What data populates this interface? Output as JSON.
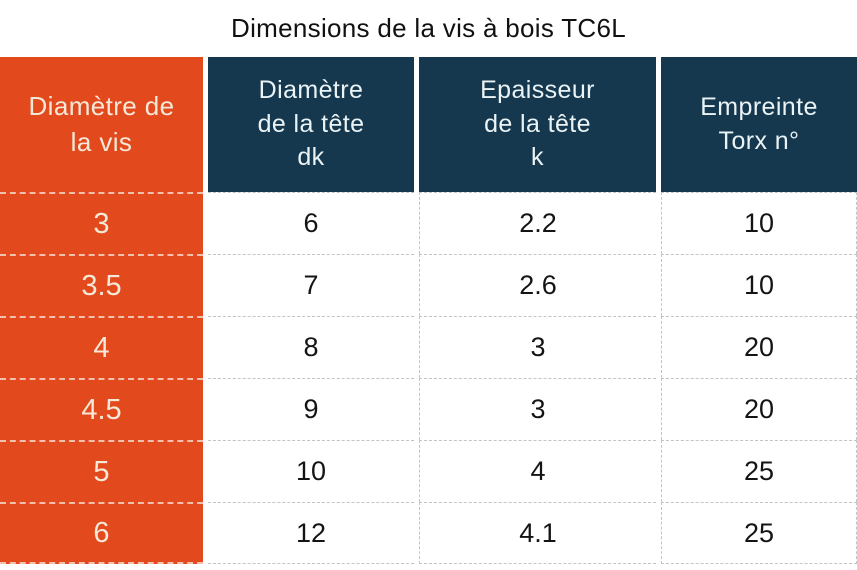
{
  "title": "Dimensions de la vis à bois TC6L",
  "colors": {
    "orange": "#E2491D",
    "navy": "#16384E",
    "label_text": "#F4E9D8",
    "header_text": "#EAF3F5",
    "data_text": "#141414",
    "divider": "#C4C4C4"
  },
  "header": {
    "col1": "Diamètre de\nla vis",
    "col2": "Diamètre\nde la tête\ndk",
    "col3": "Epaisseur\nde la tête\nk",
    "col4": "Empreinte\nTorx n°"
  },
  "chart_data": {
    "type": "table",
    "title": "Dimensions de la vis à bois TC6L",
    "columns": [
      "Diamètre de la vis",
      "Diamètre de la tête dk",
      "Epaisseur de la tête k",
      "Empreinte Torx n°"
    ],
    "rows": [
      [
        "3",
        "6",
        "2.2",
        "10"
      ],
      [
        "3.5",
        "7",
        "2.6",
        "10"
      ],
      [
        "4",
        "8",
        "3",
        "20"
      ],
      [
        "4.5",
        "9",
        "3",
        "20"
      ],
      [
        "5",
        "10",
        "4",
        "25"
      ],
      [
        "6",
        "12",
        "4.1",
        "25"
      ]
    ]
  }
}
